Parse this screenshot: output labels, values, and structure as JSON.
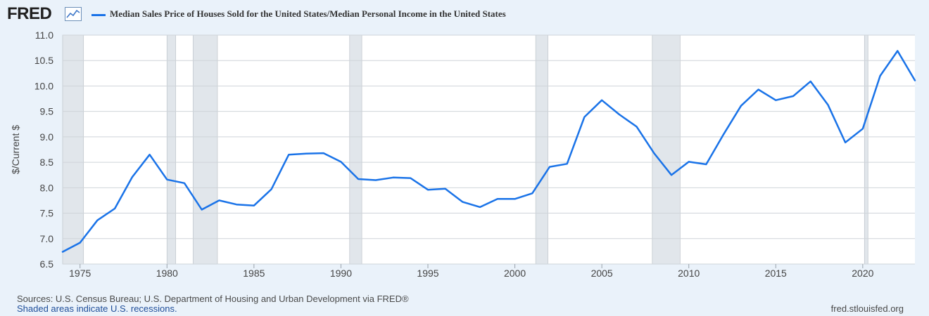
{
  "header": {
    "logo_text": "FRED",
    "logo_icon": "line-chart-icon",
    "legend_label": "Median Sales Price of Houses Sold for the United States/Median Personal Income in the United States"
  },
  "colors": {
    "series": "#1a73e8",
    "recession": "#e1e6eb",
    "grid": "#cfd4d9",
    "background": "#eaf2fa"
  },
  "footer": {
    "sources": "Sources: U.S. Census Bureau; U.S. Department of Housing and Urban Development via FRED®",
    "recessions_note": "Shaded areas indicate U.S. recessions.",
    "url": "fred.stlouisfed.org"
  },
  "chart_data": {
    "type": "line",
    "title": "",
    "xlabel": "",
    "ylabel": "$/Current $",
    "xlim": [
      1974,
      2023
    ],
    "ylim": [
      6.5,
      11.0
    ],
    "yticks": [
      "6.5",
      "7.0",
      "7.5",
      "8.0",
      "8.5",
      "9.0",
      "9.5",
      "10.0",
      "10.5",
      "11.0"
    ],
    "xticks": [
      "1975",
      "1980",
      "1985",
      "1990",
      "1995",
      "2000",
      "2005",
      "2010",
      "2015",
      "2020"
    ],
    "grid": true,
    "legend_placement": "top-left",
    "recessions": [
      [
        1974.0,
        1975.2
      ],
      [
        1980.0,
        1980.5
      ],
      [
        1981.5,
        1982.9
      ],
      [
        1990.5,
        1991.2
      ],
      [
        2001.2,
        2001.9
      ],
      [
        2007.9,
        2009.5
      ],
      [
        2020.1,
        2020.3
      ]
    ],
    "series": [
      {
        "name": "Median Sales Price of Houses Sold for the United States/Median Personal Income in the United States",
        "x": [
          1974,
          1975,
          1976,
          1977,
          1978,
          1979,
          1980,
          1981,
          1982,
          1983,
          1984,
          1985,
          1986,
          1987,
          1988,
          1989,
          1990,
          1991,
          1992,
          1993,
          1994,
          1995,
          1996,
          1997,
          1998,
          1999,
          2000,
          2001,
          2002,
          2003,
          2004,
          2005,
          2006,
          2007,
          2008,
          2009,
          2010,
          2011,
          2012,
          2013,
          2014,
          2015,
          2016,
          2017,
          2018,
          2019,
          2020,
          2021,
          2022,
          2023
        ],
        "values": [
          6.74,
          6.92,
          7.36,
          7.59,
          8.21,
          8.65,
          8.16,
          8.09,
          7.57,
          7.75,
          7.67,
          7.65,
          7.97,
          8.65,
          8.67,
          8.68,
          8.51,
          8.17,
          8.15,
          8.2,
          8.19,
          7.96,
          7.98,
          7.72,
          7.62,
          7.78,
          7.78,
          7.89,
          8.41,
          8.47,
          9.39,
          9.72,
          9.44,
          9.2,
          8.68,
          8.25,
          8.51,
          8.46,
          9.05,
          9.61,
          9.93,
          9.72,
          9.8,
          10.09,
          9.63,
          8.89,
          9.16,
          10.2,
          10.69,
          10.11
        ]
      }
    ]
  }
}
